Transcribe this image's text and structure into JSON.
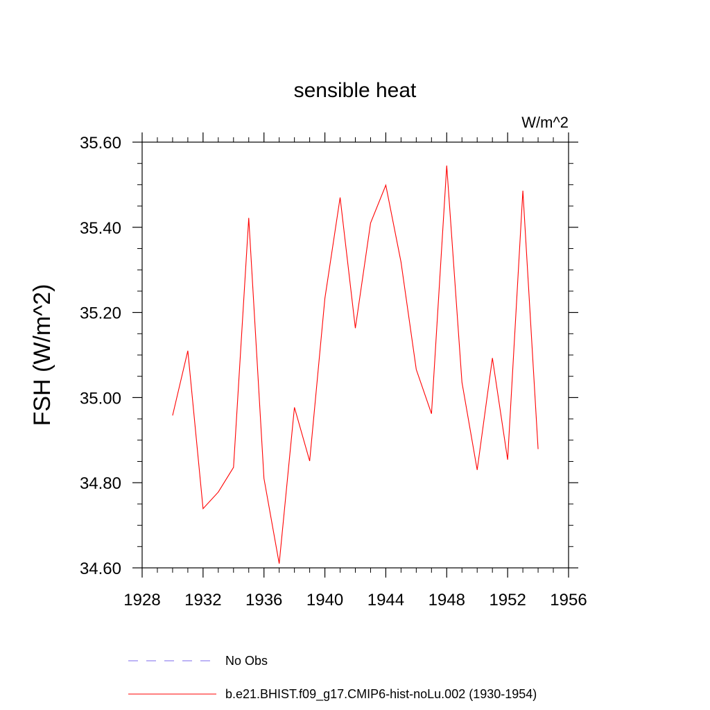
{
  "chart_data": {
    "type": "line",
    "title": "sensible heat",
    "units_label": "W/m^2",
    "ylabel": "FSH  (W/m^2)",
    "xlabel": "",
    "xlim": [
      1928,
      1956
    ],
    "ylim": [
      34.6,
      35.6
    ],
    "x_ticks": [
      1928,
      1932,
      1936,
      1940,
      1944,
      1948,
      1952,
      1956
    ],
    "x_tick_labels": [
      "1928",
      "1932",
      "1936",
      "1940",
      "1944",
      "1948",
      "1952",
      "1956"
    ],
    "y_ticks": [
      34.6,
      34.8,
      35.0,
      35.2,
      35.4,
      35.6
    ],
    "y_tick_labels": [
      "34.60",
      "34.80",
      "35.00",
      "35.20",
      "35.40",
      "35.60"
    ],
    "grid": false,
    "legend_position": "bottom",
    "series": [
      {
        "name": "b.e21.BHIST.f09_g17.CMIP6-hist-noLu.002 (1930-1954)",
        "color": "#ff0000",
        "style": "solid",
        "x": [
          1930,
          1931,
          1932,
          1933,
          1934,
          1935,
          1936,
          1937,
          1938,
          1939,
          1940,
          1941,
          1942,
          1943,
          1944,
          1945,
          1946,
          1947,
          1948,
          1949,
          1950,
          1951,
          1952,
          1953,
          1954
        ],
        "y": [
          34.958,
          35.11,
          34.739,
          34.778,
          34.836,
          35.422,
          34.81,
          34.61,
          34.977,
          34.851,
          35.233,
          35.47,
          35.163,
          35.41,
          35.499,
          35.318,
          35.066,
          34.962,
          35.545,
          35.036,
          34.83,
          35.093,
          34.854,
          35.486,
          34.879
        ]
      }
    ],
    "legend": [
      {
        "label": "No Obs",
        "color": "#7b68ee",
        "style": "dashed"
      },
      {
        "label": "b.e21.BHIST.f09_g17.CMIP6-hist-noLu.002 (1930-1954)",
        "color": "#ff0000",
        "style": "solid"
      }
    ]
  }
}
